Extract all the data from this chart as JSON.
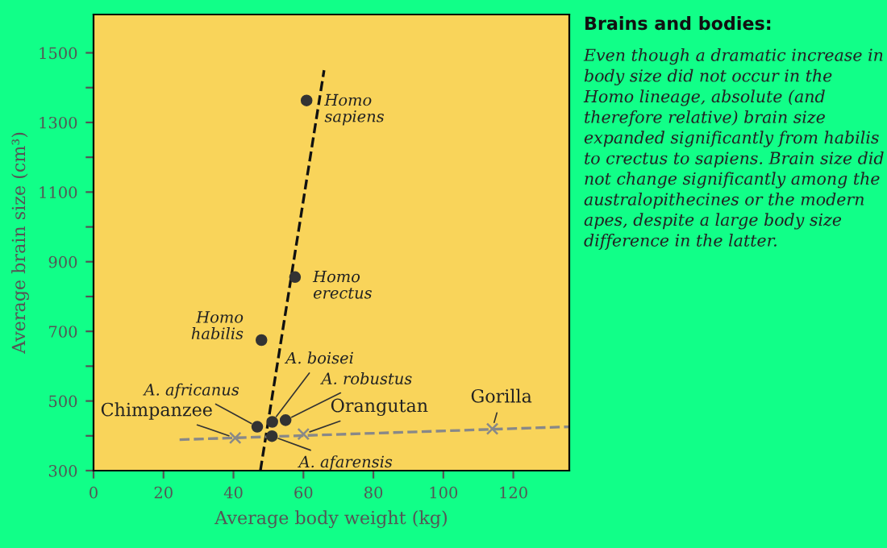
{
  "chart_data": {
    "type": "scatter",
    "title": "Brains and bodies:",
    "xlabel": "Average body weight (kg)",
    "ylabel": "Average brain size (cm³)",
    "xlim": [
      0,
      136
    ],
    "ylim": [
      300,
      1610
    ],
    "xticks": [
      0,
      20,
      40,
      60,
      80,
      100,
      120
    ],
    "yticks": [
      300,
      {
        "value": 400,
        "label": null
      },
      500,
      {
        "value": 600,
        "label": null
      },
      700,
      {
        "value": 800,
        "label": null
      },
      900,
      {
        "value": 1000,
        "label": null
      },
      1100,
      {
        "value": 1200,
        "label": null
      },
      1300,
      {
        "value": 1400,
        "label": null
      },
      1500
    ],
    "grid": false,
    "legend": false,
    "series": [
      {
        "marker": "circle",
        "color": "#333333",
        "x": [
          60.9,
          57.6,
          48,
          46.8,
          51.1,
          54.9,
          51
        ],
        "values": [
          1363,
          856,
          675,
          426,
          440,
          445,
          399
        ]
      },
      {
        "marker": "cross",
        "color": "#888888",
        "x": [
          40.5,
          60,
          114
        ],
        "values": [
          394,
          405,
          420
        ]
      },
      {
        "type": "line",
        "line_style": "dashed",
        "marker": "none",
        "color": "#111111",
        "x": [
          47.7,
          65.9
        ],
        "values": [
          300,
          1450
        ]
      },
      {
        "type": "line",
        "line_style": "dashed",
        "marker": "none",
        "color": "#888888",
        "x": [
          24.6,
          136
        ],
        "values": [
          389,
          426
        ]
      }
    ],
    "annotations": [
      {
        "text": "Homo\nsapiens",
        "x": 60.9,
        "y": 1363
      },
      {
        "text": "Homo\nerectus",
        "x": 57.6,
        "y": 856
      },
      {
        "text": "Homo\nhabilis",
        "x": 48,
        "y": 675
      },
      {
        "text": "A. africanus",
        "x": 46.8,
        "y": 426
      },
      {
        "text": "A. boisei",
        "x": 51.1,
        "y": 440
      },
      {
        "text": "A. robustus",
        "x": 54.9,
        "y": 445
      },
      {
        "text": "A. afarensis",
        "x": 51,
        "y": 399
      },
      {
        "text": "Chimpanzee",
        "x": 40.5,
        "y": 394
      },
      {
        "text": "Orangutan",
        "x": 60,
        "y": 405
      },
      {
        "text": "Gorilla",
        "x": 114,
        "y": 420
      },
      "Even though a dramatic increase in body size did not occur in the Homo lineage, absolute (and therefore relative) brain size expanded significantly from habilis to crectus to sapiens. Brain size did not change significantly among the australopithecines or the modern apes, despite a large body size difference in the latter."
    ]
  }
}
